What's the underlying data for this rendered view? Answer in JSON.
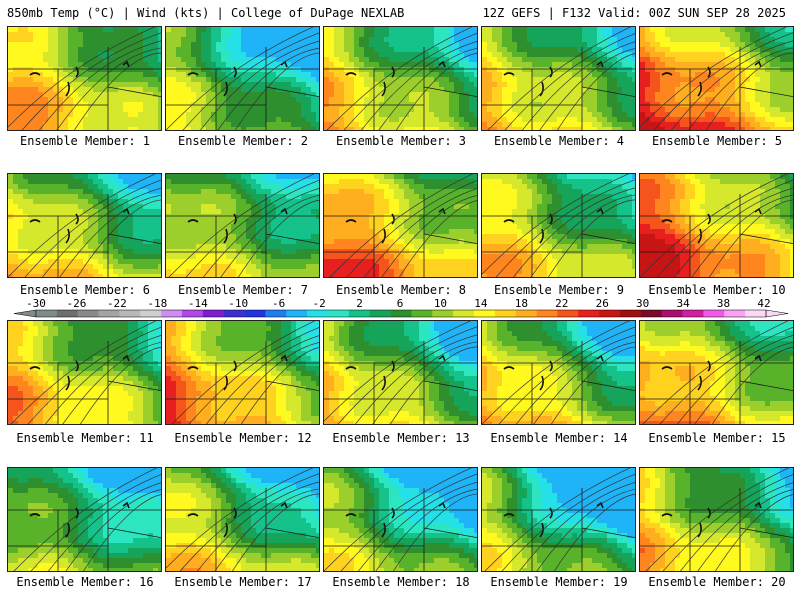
{
  "header": {
    "left": "850mb Temp (°C) | Wind (kts) | College of DuPage NEXLAB",
    "right": "12Z GEFS | F132 Valid: 00Z SUN SEP 28 2025"
  },
  "members": [
    {
      "label": "Ensemble Member: 1",
      "warmth": 0.75,
      "cold_ne": 0.15
    },
    {
      "label": "Ensemble Member: 2",
      "warmth": 0.55,
      "cold_ne": 0.55
    },
    {
      "label": "Ensemble Member: 3",
      "warmth": 0.7,
      "cold_ne": 0.35
    },
    {
      "label": "Ensemble Member: 4",
      "warmth": 0.7,
      "cold_ne": 0.25
    },
    {
      "label": "Ensemble Member: 5",
      "warmth": 0.95,
      "cold_ne": 0.1
    },
    {
      "label": "Ensemble Member: 6",
      "warmth": 0.7,
      "cold_ne": 0.3
    },
    {
      "label": "Ensemble Member: 7",
      "warmth": 0.6,
      "cold_ne": 0.2
    },
    {
      "label": "Ensemble Member: 8",
      "warmth": 0.85,
      "cold_ne": 0.1
    },
    {
      "label": "Ensemble Member: 9",
      "warmth": 0.7,
      "cold_ne": 0.3
    },
    {
      "label": "Ensemble Member: 10",
      "warmth": 0.95,
      "cold_ne": 0.1
    },
    {
      "label": "Ensemble Member: 11",
      "warmth": 0.75,
      "cold_ne": 0.2
    },
    {
      "label": "Ensemble Member: 12",
      "warmth": 0.85,
      "cold_ne": 0.25
    },
    {
      "label": "Ensemble Member: 13",
      "warmth": 0.7,
      "cold_ne": 0.45
    },
    {
      "label": "Ensemble Member: 14",
      "warmth": 0.75,
      "cold_ne": 0.5
    },
    {
      "label": "Ensemble Member: 15",
      "warmth": 0.8,
      "cold_ne": 0.15
    },
    {
      "label": "Ensemble Member: 16",
      "warmth": 0.5,
      "cold_ne": 0.35
    },
    {
      "label": "Ensemble Member: 17",
      "warmth": 0.65,
      "cold_ne": 0.5
    },
    {
      "label": "Ensemble Member: 18",
      "warmth": 0.55,
      "cold_ne": 0.65
    },
    {
      "label": "Ensemble Member: 19",
      "warmth": 0.55,
      "cold_ne": 0.85
    },
    {
      "label": "Ensemble Member: 20",
      "warmth": 0.7,
      "cold_ne": 0.3
    }
  ],
  "colorbar": {
    "labels": [
      "-30",
      "-26",
      "-22",
      "-18",
      "-14",
      "-10",
      "-6",
      "-2",
      "2",
      "6",
      "10",
      "14",
      "18",
      "22",
      "26",
      "30",
      "34",
      "38",
      "42"
    ],
    "colors": [
      "#7f8c8c",
      "#6e6e6e",
      "#8a8a8a",
      "#a3a3a3",
      "#b8b8b8",
      "#cfcfcf",
      "#d18cf2",
      "#b049e6",
      "#7d1fd1",
      "#3d2fcf",
      "#2233e0",
      "#1f7df0",
      "#1fb4f7",
      "#25e0e6",
      "#2ce6c1",
      "#14c28a",
      "#16a35a",
      "#2e8f2e",
      "#58b32b",
      "#9ccf2b",
      "#d6e82b",
      "#fff91f",
      "#ffd21f",
      "#ffae1f",
      "#ff861f",
      "#f5551c",
      "#e81f1f",
      "#c71414",
      "#9e0f0f",
      "#7a0a2a",
      "#a80f6e",
      "#d11fa3",
      "#f05ce6",
      "#f7a3f0",
      "#fcd8f7"
    ]
  }
}
